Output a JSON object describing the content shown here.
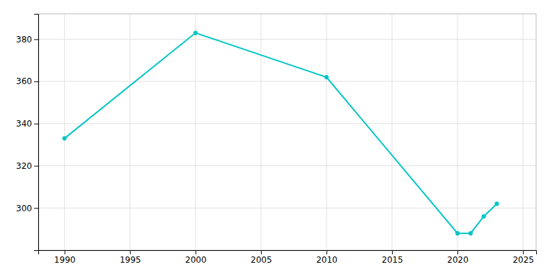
{
  "chart_data": {
    "type": "line",
    "x": [
      1990,
      2000,
      2010,
      2020,
      2021,
      2022,
      2023
    ],
    "values": [
      333,
      383,
      362,
      288,
      288,
      296,
      302
    ],
    "color": "#00C5C5",
    "marker": "circle",
    "xlim": [
      1988,
      2026
    ],
    "ylim": [
      280,
      392
    ],
    "xticks": [
      1990,
      1995,
      2000,
      2005,
      2010,
      2015,
      2020,
      2025
    ],
    "yticks": [
      300,
      320,
      340,
      360,
      380
    ],
    "grid": true
  }
}
